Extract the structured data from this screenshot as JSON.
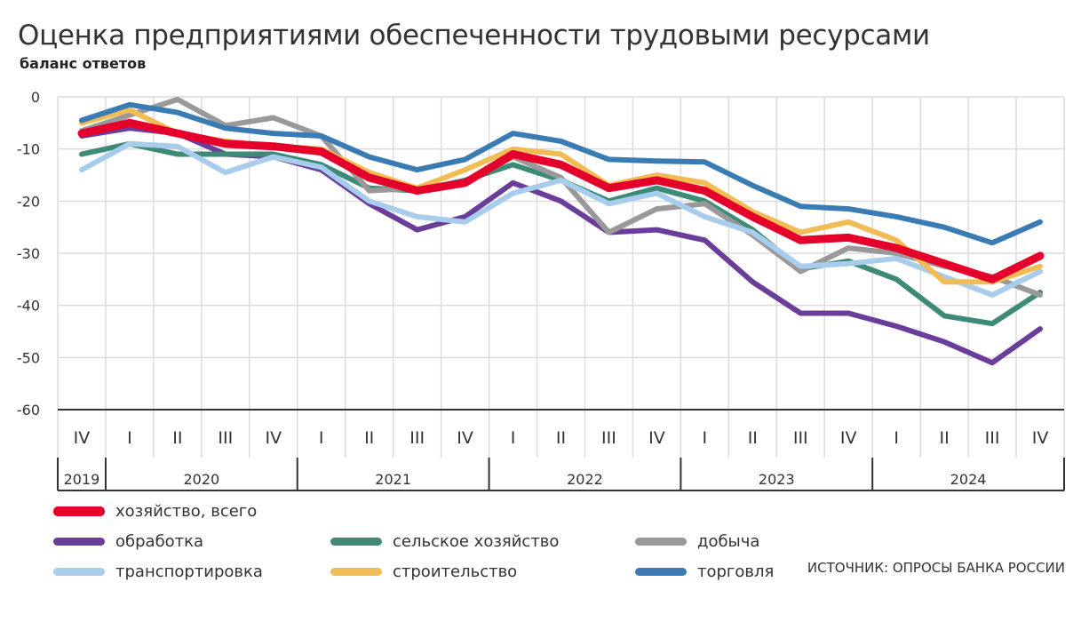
{
  "title": "Оценка предприятиями обеспеченности трудовыми ресурсами",
  "subtitle": "баланс ответов",
  "source": "ИСТОЧНИК: ОПРОСЫ БАНКА РОССИИ",
  "chart_data": {
    "type": "line",
    "ylim": [
      -60,
      0
    ],
    "yticks": [
      0,
      -10,
      -20,
      -30,
      -40,
      -50,
      -60
    ],
    "grid": true,
    "legend_position": "bottom",
    "categories": [
      "IV",
      "I",
      "II",
      "III",
      "IV",
      "I",
      "II",
      "III",
      "IV",
      "I",
      "II",
      "III",
      "IV",
      "I",
      "II",
      "III",
      "IV",
      "I",
      "II",
      "III",
      "IV"
    ],
    "years": [
      {
        "label": "2019",
        "quarters": 1
      },
      {
        "label": "2020",
        "quarters": 4
      },
      {
        "label": "2021",
        "quarters": 4
      },
      {
        "label": "2022",
        "quarters": 4
      },
      {
        "label": "2023",
        "quarters": 4
      },
      {
        "label": "2024",
        "quarters": 4
      }
    ],
    "series": [
      {
        "name": "хозяйство, всего",
        "color": "#e4002b",
        "width": 9,
        "values": [
          -7,
          -5,
          -7,
          -9,
          -9.5,
          -10.5,
          -15.5,
          -18,
          -16.5,
          -11,
          -13,
          -17.5,
          -16,
          -18,
          -23,
          -27.5,
          -27,
          -29,
          -32,
          -35,
          -30.5
        ]
      },
      {
        "name": "обработка",
        "color": "#6a3d9a",
        "width": 6,
        "values": [
          -7.5,
          -6,
          -7,
          -11,
          -11.5,
          -14,
          -20.5,
          -25.5,
          -23,
          -16.5,
          -20,
          -26,
          -25.5,
          -27.5,
          -35.5,
          -41.5,
          -41.5,
          -44,
          -47,
          -51,
          -44.5
        ]
      },
      {
        "name": "сельское хозяйство",
        "color": "#3d8a77",
        "width": 6,
        "values": [
          -11,
          -9,
          -11,
          -11,
          -11,
          -13,
          -17.5,
          -18,
          -16,
          -13,
          -16,
          -20,
          -17.5,
          -20,
          -25.5,
          -33,
          -31.5,
          -35,
          -42,
          -43.5,
          -37.5
        ]
      },
      {
        "name": "добыча",
        "color": "#999999",
        "width": 6,
        "values": [
          -6.5,
          -3.5,
          -0.5,
          -5.5,
          -4,
          -7.5,
          -18,
          -17.5,
          -16.5,
          -11.5,
          -15.5,
          -26,
          -21.5,
          -20.5,
          -26.5,
          -33.5,
          -29,
          -30,
          -32.5,
          -34.5,
          -38
        ]
      },
      {
        "name": "транспортировка",
        "color": "#a8ccec",
        "width": 6,
        "values": [
          -14,
          -9,
          -9.5,
          -14.5,
          -11.5,
          -13.5,
          -20,
          -23,
          -24,
          -18.5,
          -16,
          -20.5,
          -18.5,
          -23,
          -26,
          -32.5,
          -32,
          -31,
          -34.5,
          -38,
          -33.5
        ]
      },
      {
        "name": "строительство",
        "color": "#f2bc55",
        "width": 6,
        "values": [
          -5,
          -2.5,
          -7,
          -8.5,
          -9.5,
          -10,
          -14.5,
          -17.5,
          -14,
          -10,
          -11,
          -17,
          -15,
          -16.5,
          -22,
          -26,
          -24,
          -27.5,
          -35.5,
          -35.5,
          -32.5
        ]
      },
      {
        "name": "торговля",
        "color": "#3b7bb3",
        "width": 6,
        "values": [
          -4.5,
          -1.5,
          -3,
          -6,
          -7,
          -7.5,
          -11.5,
          -14,
          -12,
          -7,
          -8.5,
          -12,
          -12.3,
          -12.5,
          -17,
          -21,
          -21.5,
          -23,
          -25,
          -28,
          -24
        ]
      }
    ]
  }
}
